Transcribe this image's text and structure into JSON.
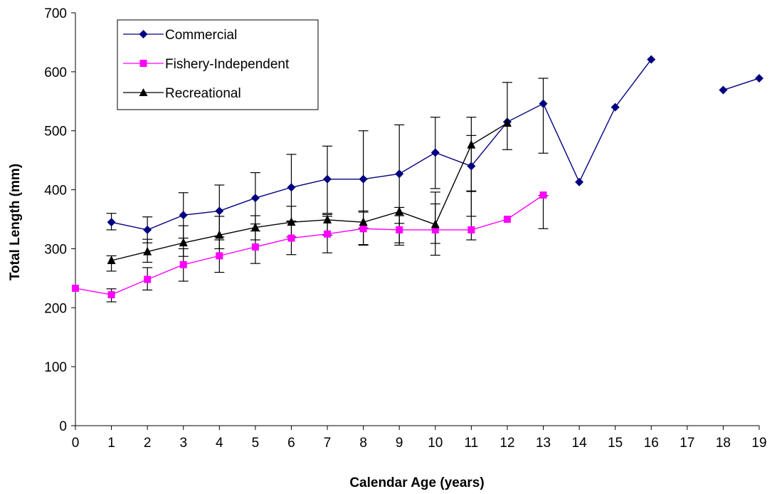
{
  "chart_data": {
    "type": "line",
    "title": "",
    "xlabel": "Calendar Age (years)",
    "ylabel": "Total Length (mm)",
    "xlim": [
      0,
      19
    ],
    "ylim": [
      0,
      700
    ],
    "x_ticks": [
      0,
      1,
      2,
      3,
      4,
      5,
      6,
      7,
      8,
      9,
      10,
      11,
      12,
      13,
      14,
      15,
      16,
      17,
      18,
      19
    ],
    "y_ticks": [
      0,
      100,
      200,
      300,
      400,
      500,
      600,
      700
    ],
    "grid": false,
    "legend_position": "top-left",
    "series": [
      {
        "name": "Commercial",
        "color": "#000080",
        "marker": "diamond",
        "points": [
          {
            "x": 1,
            "y": 345,
            "lo": 332,
            "hi": 360
          },
          {
            "x": 2,
            "y": 332,
            "lo": 310,
            "hi": 354
          },
          {
            "x": 3,
            "y": 357,
            "lo": 318,
            "hi": 395
          },
          {
            "x": 4,
            "y": 364,
            "lo": 320,
            "hi": 408
          },
          {
            "x": 5,
            "y": 386,
            "lo": 342,
            "hi": 429
          },
          {
            "x": 6,
            "y": 404,
            "lo": 347,
            "hi": 460
          },
          {
            "x": 7,
            "y": 418,
            "lo": 360,
            "hi": 474
          },
          {
            "x": 8,
            "y": 418,
            "lo": 335,
            "hi": 500
          },
          {
            "x": 9,
            "y": 427,
            "lo": 343,
            "hi": 510
          },
          {
            "x": 10,
            "y": 463,
            "lo": 402,
            "hi": 523
          },
          {
            "x": 11,
            "y": 440,
            "lo": 355,
            "hi": 523
          },
          {
            "x": 12,
            "y": 515,
            "lo": 468,
            "hi": 582
          },
          {
            "x": 13,
            "y": 546,
            "lo": 462,
            "hi": 589
          },
          {
            "x": 14,
            "y": 413
          },
          {
            "x": 15,
            "y": 540
          },
          {
            "x": 16,
            "y": 621
          },
          {
            "x": 18,
            "y": 569
          },
          {
            "x": 19,
            "y": 589
          }
        ]
      },
      {
        "name": "Fishery-Independent",
        "color": "#FF00FF",
        "marker": "square",
        "points": [
          {
            "x": 0,
            "y": 233
          },
          {
            "x": 1,
            "y": 222,
            "lo": 210,
            "hi": 232
          },
          {
            "x": 2,
            "y": 248,
            "lo": 230,
            "hi": 268
          },
          {
            "x": 3,
            "y": 273,
            "lo": 245,
            "hi": 300
          },
          {
            "x": 4,
            "y": 288,
            "lo": 260,
            "hi": 315
          },
          {
            "x": 5,
            "y": 303,
            "lo": 275,
            "hi": 330
          },
          {
            "x": 6,
            "y": 318,
            "lo": 290,
            "hi": 346
          },
          {
            "x": 7,
            "y": 325,
            "lo": 293,
            "hi": 355
          },
          {
            "x": 8,
            "y": 334,
            "lo": 307,
            "hi": 362
          },
          {
            "x": 9,
            "y": 332,
            "lo": 310,
            "hi": 356
          },
          {
            "x": 10,
            "y": 332,
            "lo": 289,
            "hi": 376
          },
          {
            "x": 11,
            "y": 332,
            "lo": 315,
            "hi": 398
          },
          {
            "x": 12,
            "y": 350
          },
          {
            "x": 13,
            "y": 391,
            "lo": 334,
            "hi": 390
          }
        ]
      },
      {
        "name": "Recreational",
        "color": "#000000",
        "marker": "triangle",
        "points": [
          {
            "x": 1,
            "y": 280,
            "lo": 262,
            "hi": 288
          },
          {
            "x": 2,
            "y": 295,
            "lo": 277,
            "hi": 316
          },
          {
            "x": 3,
            "y": 310,
            "lo": 287,
            "hi": 339
          },
          {
            "x": 4,
            "y": 323,
            "lo": 300,
            "hi": 355
          },
          {
            "x": 5,
            "y": 336,
            "lo": 315,
            "hi": 356
          },
          {
            "x": 6,
            "y": 345,
            "lo": 320,
            "hi": 372
          },
          {
            "x": 7,
            "y": 349,
            "lo": 323,
            "hi": 358
          },
          {
            "x": 8,
            "y": 345,
            "lo": 306,
            "hi": 364
          },
          {
            "x": 9,
            "y": 363,
            "lo": 306,
            "hi": 370
          },
          {
            "x": 10,
            "y": 341,
            "lo": 309,
            "hi": 396
          },
          {
            "x": 11,
            "y": 476,
            "lo": 397,
            "hi": 492
          },
          {
            "x": 12,
            "y": 513
          }
        ]
      }
    ]
  }
}
